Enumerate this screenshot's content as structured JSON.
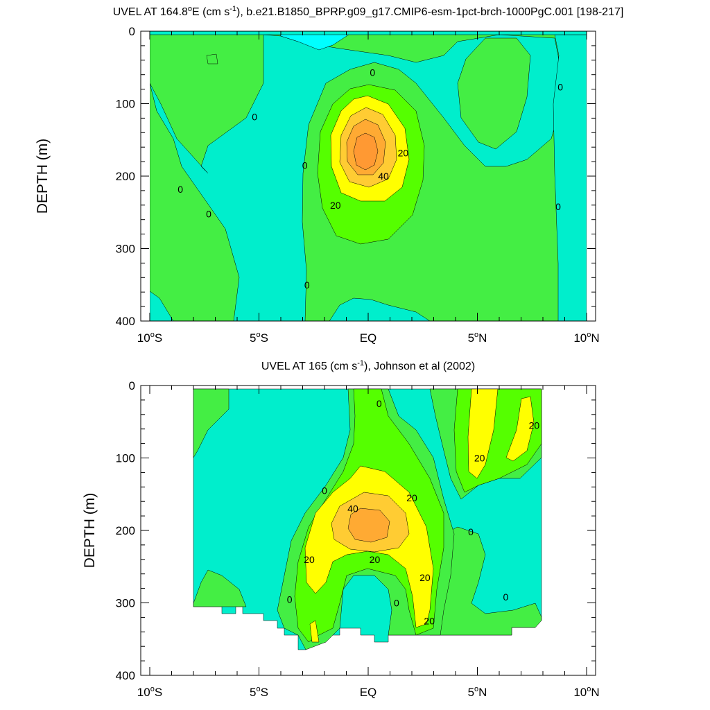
{
  "colors": {
    "c_neg20": "#00ffff",
    "c_neg10": "#00eecc",
    "c_0": "#44ee44",
    "c_10": "#55ff00",
    "c_20": "#ffff00",
    "c_30": "#ffcc33",
    "c_40": "#ffaa33",
    "c_50": "#ff9933",
    "line": "#000000"
  },
  "chart_data": [
    {
      "type": "contour",
      "title_main": "UVEL AT 164.8",
      "title_deg": "o",
      "title_unit_pre": "E (cm s",
      "title_unit_sup": "-1",
      "title_rest": "), b.e21.B1850_BPRP.g09_g17.CMIP6-esm-1pct-brch-1000PgC.001 [198-217]",
      "ylabel": "DEPTH (m)",
      "ylim": [
        0,
        400
      ],
      "xlim": [
        -10,
        10
      ],
      "y_ticks": [
        "0",
        "100",
        "200",
        "300",
        "400"
      ],
      "x_ticks": [
        {
          "num": "10",
          "deg": "o",
          "hem": "S",
          "lon": -10
        },
        {
          "num": "5",
          "deg": "o",
          "hem": "S",
          "lon": -5
        },
        {
          "num": "EQ",
          "deg": "",
          "hem": "",
          "lon": 0
        },
        {
          "num": "5",
          "deg": "o",
          "hem": "N",
          "lon": 5
        },
        {
          "num": "10",
          "deg": "o",
          "hem": "N",
          "lon": 10
        }
      ],
      "contour_labels": [
        {
          "text": "0",
          "lat": -5.2,
          "depth": 118
        },
        {
          "text": "0",
          "lat": -8.6,
          "depth": 218
        },
        {
          "text": "0",
          "lat": -7.3,
          "depth": 252
        },
        {
          "text": "0",
          "lat": 0.2,
          "depth": 57
        },
        {
          "text": "0",
          "lat": -2.9,
          "depth": 185
        },
        {
          "text": "0",
          "lat": -2.8,
          "depth": 350
        },
        {
          "text": "0",
          "lat": 8.8,
          "depth": 77
        },
        {
          "text": "0",
          "lat": 8.7,
          "depth": 242
        },
        {
          "text": "20",
          "lat": 1.6,
          "depth": 168
        },
        {
          "text": "20",
          "lat": -1.5,
          "depth": 240
        },
        {
          "text": "40",
          "lat": 0.7,
          "depth": 200
        }
      ]
    },
    {
      "type": "contour",
      "title_main": "UVEL AT 165 (cm s",
      "title_sup": "-1",
      "title_rest": "), Johnson et al (2002)",
      "ylabel": "DEPTH (m)",
      "ylim": [
        0,
        400
      ],
      "xlim": [
        -10,
        10
      ],
      "y_ticks": [
        "0",
        "100",
        "200",
        "300",
        "400"
      ],
      "x_ticks": [
        {
          "num": "10",
          "deg": "o",
          "hem": "S",
          "lon": -10
        },
        {
          "num": "5",
          "deg": "o",
          "hem": "S",
          "lon": -5
        },
        {
          "num": "EQ",
          "deg": "",
          "hem": "",
          "lon": 0
        },
        {
          "num": "5",
          "deg": "o",
          "hem": "N",
          "lon": 5
        },
        {
          "num": "10",
          "deg": "o",
          "hem": "N",
          "lon": 10
        }
      ],
      "contour_labels": [
        {
          "text": "0",
          "lat": 0.5,
          "depth": 25
        },
        {
          "text": "0",
          "lat": -2.0,
          "depth": 145
        },
        {
          "text": "0",
          "lat": 4.7,
          "depth": 202
        },
        {
          "text": "0",
          "lat": -3.6,
          "depth": 295
        },
        {
          "text": "0",
          "lat": 1.3,
          "depth": 300
        },
        {
          "text": "0",
          "lat": 6.3,
          "depth": 292
        },
        {
          "text": "20",
          "lat": 7.6,
          "depth": 55
        },
        {
          "text": "20",
          "lat": 5.1,
          "depth": 100
        },
        {
          "text": "20",
          "lat": 2.0,
          "depth": 155
        },
        {
          "text": "20",
          "lat": -2.7,
          "depth": 240
        },
        {
          "text": "20",
          "lat": 0.3,
          "depth": 240
        },
        {
          "text": "20",
          "lat": 2.6,
          "depth": 265
        },
        {
          "text": "20",
          "lat": 2.8,
          "depth": 325
        },
        {
          "text": "40",
          "lat": -0.7,
          "depth": 170
        }
      ]
    }
  ]
}
